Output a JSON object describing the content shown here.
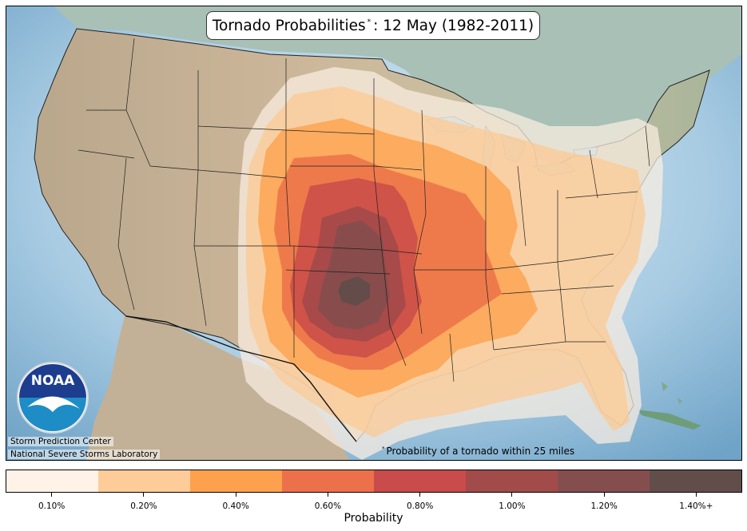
{
  "title": {
    "main": "Tornado Probabilities",
    "marker": "*",
    "date": ": 12 May (1982-2011)"
  },
  "footnote": {
    "marker": "*",
    "text": "Probability of a tornado within 25 miles"
  },
  "credits": {
    "line1": "Storm Prediction Center",
    "line2": "National Severe Storms Laboratory"
  },
  "logo": {
    "text": "NOAA",
    "icon": "noaa-logo-icon"
  },
  "legend": {
    "label": "Probability",
    "bins": [
      {
        "label": "0.10%",
        "color": "#fef3e6"
      },
      {
        "label": "0.20%",
        "color": "#fdcc99"
      },
      {
        "label": "0.40%",
        "color": "#fda14e"
      },
      {
        "label": "0.60%",
        "color": "#ec714a"
      },
      {
        "label": "0.80%",
        "color": "#c94b4b"
      },
      {
        "label": "1.00%",
        "color": "#a14b4b"
      },
      {
        "label": "1.20%",
        "color": "#854e4e"
      },
      {
        "label": "1.40%+",
        "color": "#614e4b"
      }
    ]
  },
  "colors": {
    "ocean": "#9bc5e0",
    "land": "#c8b49a",
    "canada": "#a9c2b8"
  }
}
